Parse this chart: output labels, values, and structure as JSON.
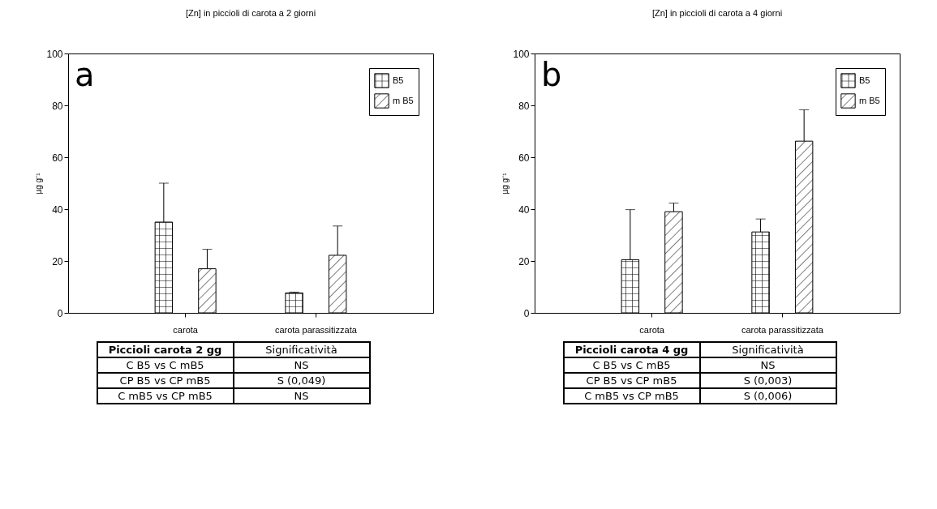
{
  "chart_data": [
    {
      "type": "bar",
      "title": "[Zn] in piccioli di carota a 2 giorni",
      "ylabel": "µg g⁻¹",
      "categories": [
        "carota",
        "carota parassitizzata"
      ],
      "series": [
        {
          "name": "B5",
          "color": "#000000",
          "values": [
            35,
            7.7
          ],
          "errors": [
            [
              35,
              50
            ],
            [
              7.7,
              8
            ]
          ]
        },
        {
          "name": "m B5",
          "color": "#000000",
          "values": [
            17,
            22.2
          ],
          "errors": [
            [
              17,
              24.5
            ],
            [
              22.2,
              33.5
            ]
          ]
        }
      ],
      "ylim": [
        0,
        100
      ],
      "yticks": [
        0,
        20,
        40,
        60,
        80,
        100
      ],
      "legend": "top right",
      "grid": false,
      "annotations": [
        "a",
        "Piccioli carota 2 gg",
        "Significatività",
        "C B5 vs C mB5",
        "NS",
        "CP B5 vs CP mB5",
        "S (0,049)",
        "C mB5 vs CP mB5",
        "NS"
      ]
    },
    {
      "type": "bar",
      "title": "[Zn] in piccioli di carota a 4 giorni",
      "ylabel": "µg g⁻¹",
      "categories": [
        "carota",
        "carota parassitizzata"
      ],
      "series": [
        {
          "name": "B5",
          "color": "#000000",
          "values": [
            20.5,
            31.2
          ],
          "errors": [
            [
              20.5,
              39.8
            ],
            [
              31.2,
              36.2
            ]
          ]
        },
        {
          "name": "m B5",
          "color": "#000000",
          "values": [
            39,
            66.2
          ],
          "errors": [
            [
              39,
              42.3
            ],
            [
              66.2,
              78.3
            ]
          ]
        }
      ],
      "ylim": [
        0,
        100
      ],
      "yticks": [
        0,
        20,
        40,
        60,
        80,
        100
      ],
      "legend": "top right",
      "grid": false,
      "annotations": [
        "b",
        "Piccioli carota 4 gg",
        "Significatività",
        "C B5 vs C mB5",
        "NS",
        "CP B5 vs CP mB5",
        "S (0,003)",
        "C mB5 vs CP mB5",
        "S (0,006)"
      ]
    }
  ]
}
